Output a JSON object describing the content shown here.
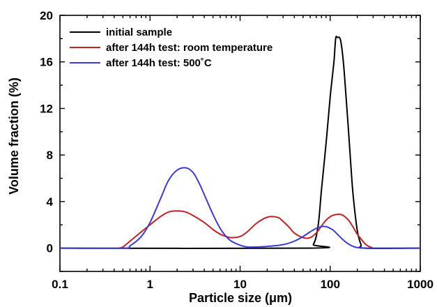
{
  "chart_data": {
    "type": "line",
    "title": "",
    "xlabel": "Particle size (μm)",
    "ylabel": "Volume fraction (%)",
    "x_scale": "log",
    "xlim": [
      0.1,
      1000
    ],
    "ylim": [
      -2,
      20
    ],
    "x_ticks": [
      0.1,
      1,
      10,
      100,
      1000
    ],
    "x_tick_labels": [
      "0.1",
      "1",
      "10",
      "100",
      "1000"
    ],
    "y_ticks": [
      0,
      4,
      8,
      12,
      16,
      20
    ],
    "y_tick_labels": [
      "0",
      "4",
      "8",
      "12",
      "16",
      "20"
    ],
    "grid": false,
    "legend_position": "top-left",
    "series": [
      {
        "name": "initial sample",
        "color": "#000000",
        "x": [
          0.1,
          60,
          65,
          70,
          75,
          80,
          90,
          100,
          110,
          115,
          120,
          130,
          140,
          150,
          160,
          170,
          180,
          200,
          220,
          240,
          1000
        ],
        "y": [
          0,
          0,
          0.3,
          1.0,
          2.5,
          5.0,
          9.0,
          13.0,
          16.0,
          18.0,
          18.1,
          17.9,
          16.0,
          13.0,
          10.0,
          7.0,
          4.5,
          1.5,
          0.3,
          0,
          0
        ]
      },
      {
        "name": "after 144h test: room temperature",
        "color": "#c62020",
        "x": [
          0.45,
          0.5,
          0.6,
          0.8,
          1.0,
          1.3,
          1.6,
          2.0,
          2.5,
          3.0,
          4.0,
          5.0,
          6.0,
          7.0,
          8.0,
          10,
          12,
          15,
          18,
          21,
          24,
          27,
          30,
          35,
          40,
          50,
          60,
          70,
          80,
          90,
          100,
          110,
          120,
          130,
          140,
          160,
          180,
          200,
          250,
          300
        ],
        "y": [
          0,
          0.1,
          0.6,
          1.4,
          2.0,
          2.7,
          3.1,
          3.2,
          3.1,
          2.8,
          2.2,
          1.6,
          1.2,
          1.0,
          0.9,
          1.0,
          1.4,
          2.1,
          2.5,
          2.7,
          2.7,
          2.6,
          2.3,
          1.8,
          1.3,
          0.9,
          0.9,
          1.3,
          1.9,
          2.4,
          2.7,
          2.85,
          2.9,
          2.9,
          2.8,
          2.4,
          1.8,
          1.2,
          0.3,
          0
        ]
      },
      {
        "name": "after 144h test: 500˚C",
        "color": "#3a3adf",
        "x": [
          0.1,
          0.5,
          0.6,
          0.8,
          1.0,
          1.3,
          1.6,
          2.0,
          2.5,
          3.0,
          3.5,
          4.0,
          5.0,
          6.0,
          7.0,
          8.0,
          10,
          12,
          15,
          20,
          30,
          40,
          50,
          60,
          70,
          80,
          90,
          100,
          110,
          120,
          140,
          160,
          180,
          200,
          250,
          300,
          1000
        ],
        "y": [
          0,
          0,
          0.2,
          1.0,
          2.2,
          4.2,
          5.8,
          6.7,
          6.9,
          6.5,
          5.6,
          4.6,
          2.9,
          1.7,
          1.0,
          0.6,
          0.25,
          0.1,
          0.1,
          0.15,
          0.3,
          0.6,
          1.0,
          1.4,
          1.7,
          1.85,
          1.85,
          1.7,
          1.5,
          1.2,
          0.7,
          0.35,
          0.15,
          0.05,
          0,
          0,
          0
        ]
      }
    ]
  }
}
